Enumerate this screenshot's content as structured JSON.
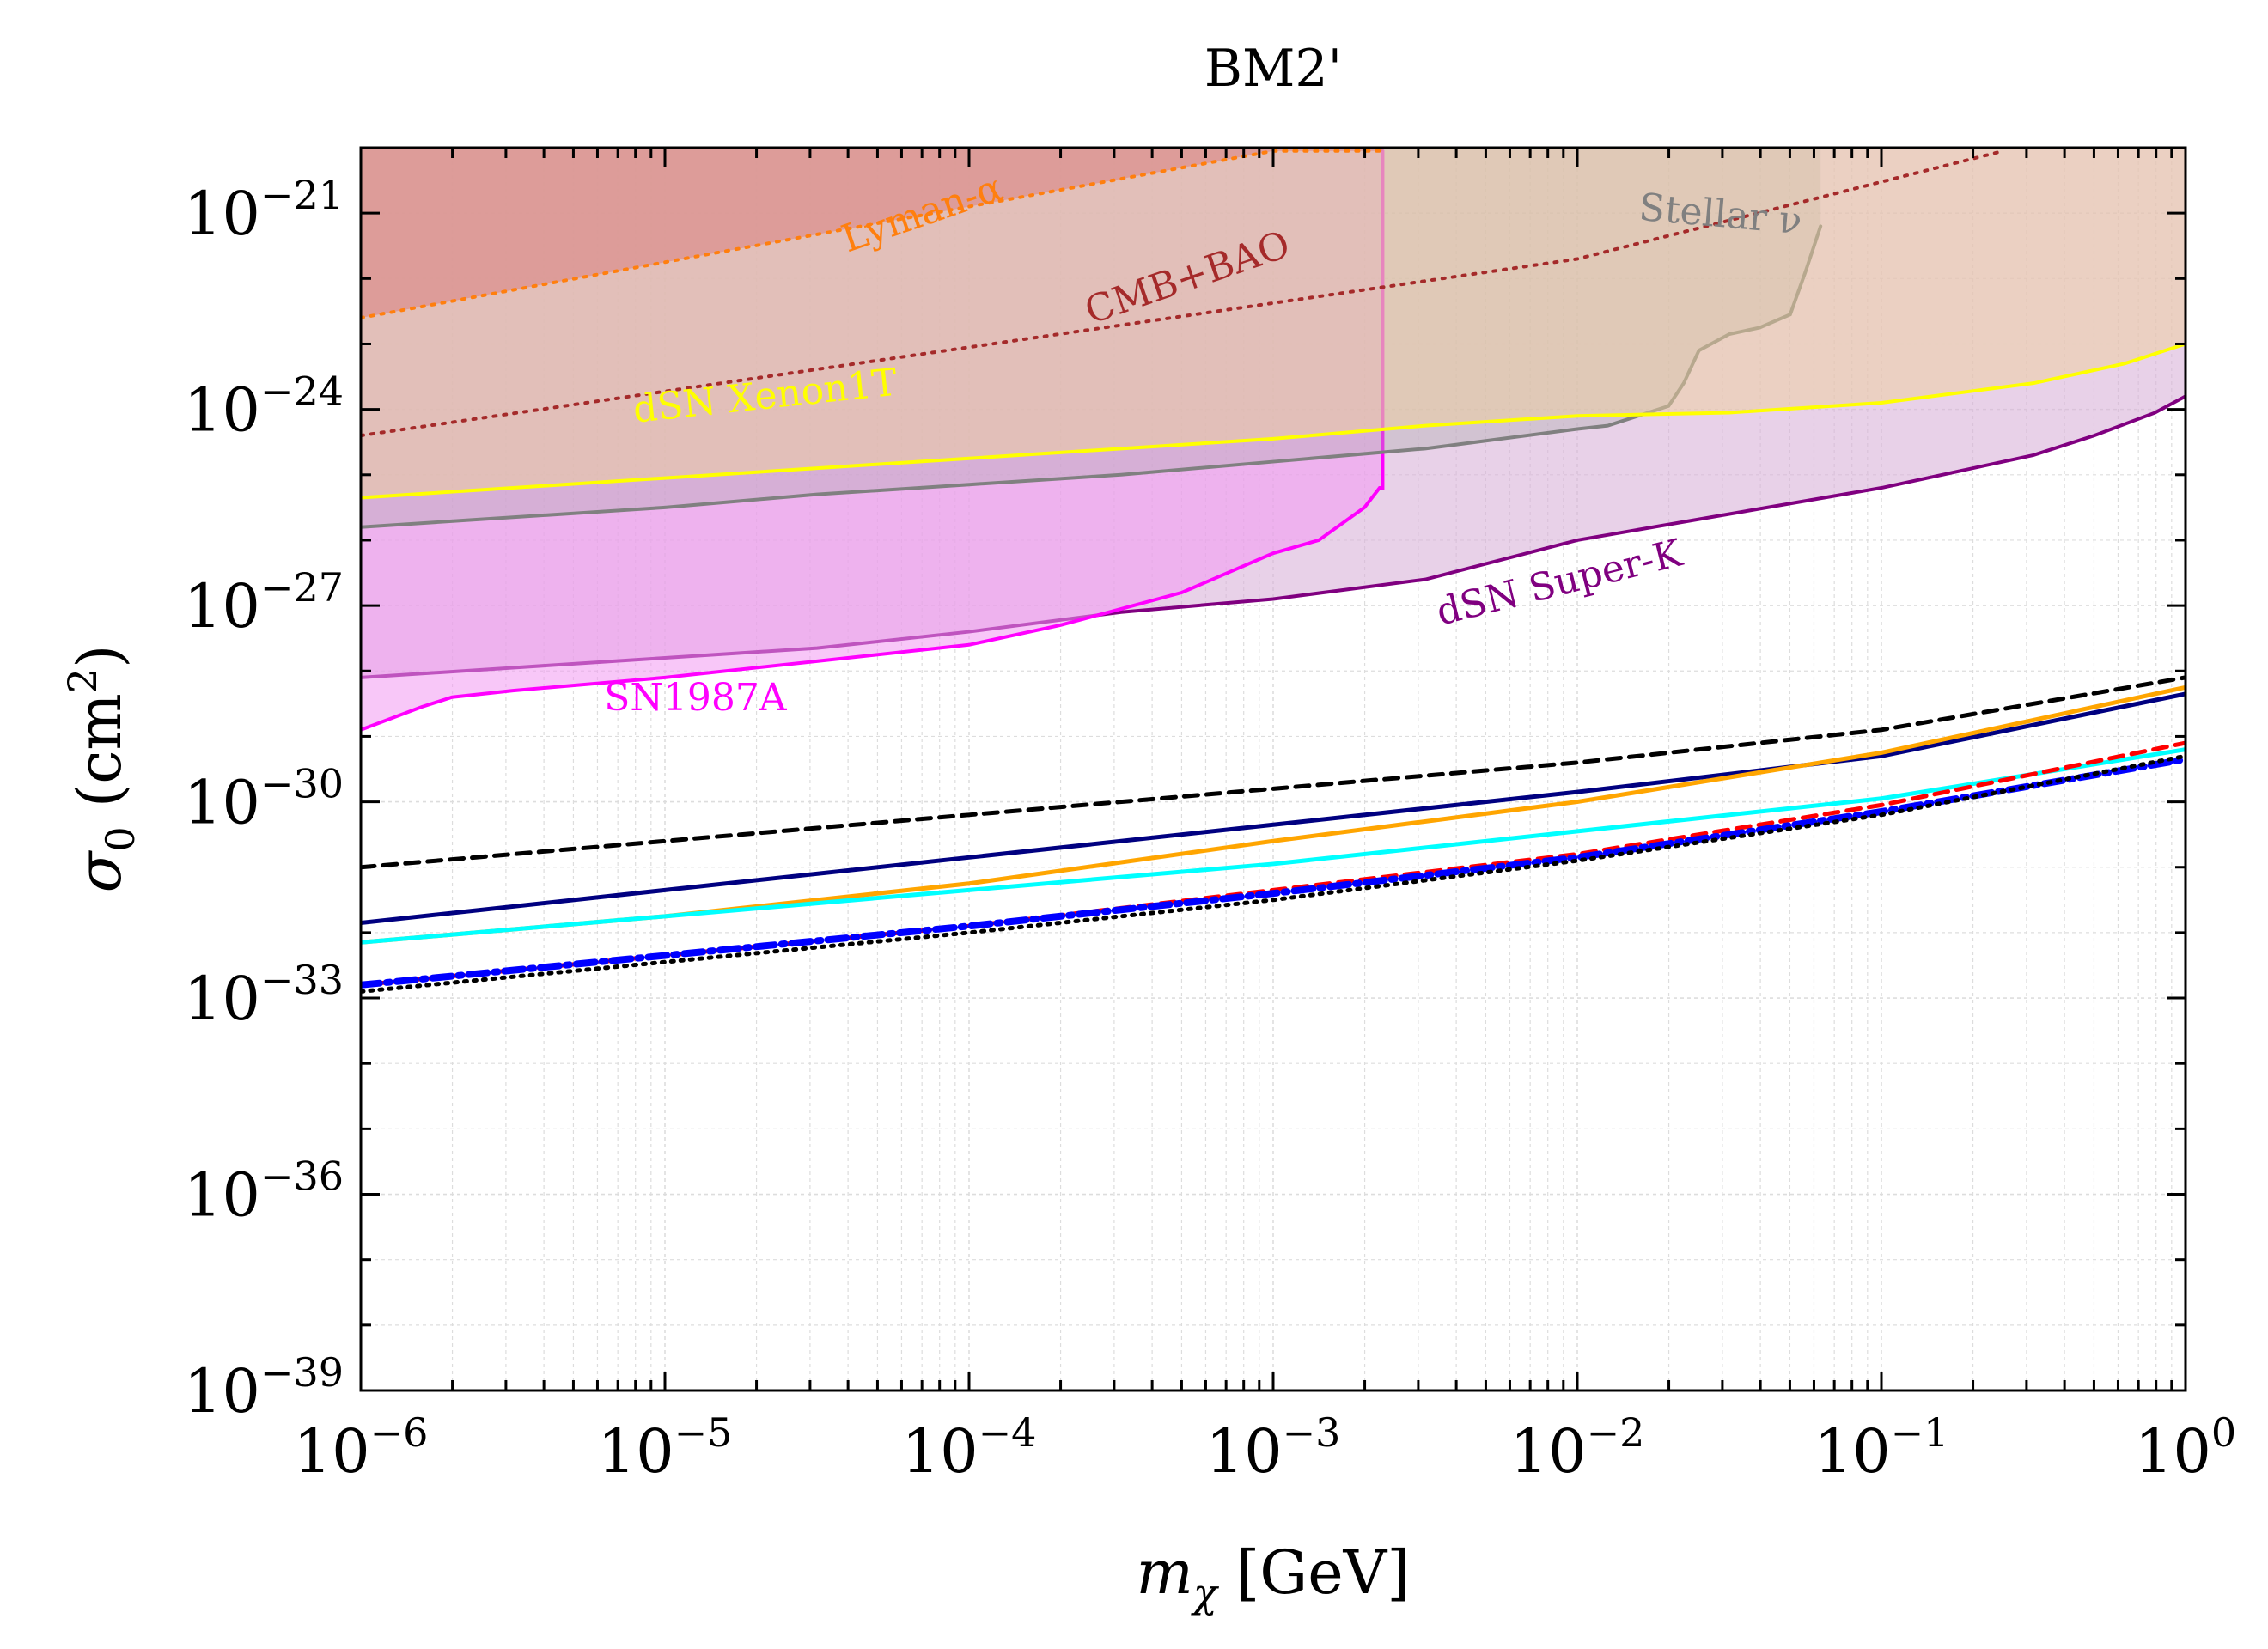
{
  "chart_data": {
    "type": "line",
    "title": "BM2'",
    "xlabel": {
      "var": "m",
      "sub": "χ",
      "unit": " [GeV]"
    },
    "ylabel": {
      "var": "σ",
      "sub": "0",
      "unit_open": " (cm",
      "unit_sup": "2",
      "unit_close": ")"
    },
    "x_scale": "log",
    "y_scale": "log",
    "xlim_log10": [
      -6,
      0
    ],
    "ylim_log10": [
      -39,
      -20
    ],
    "x_ticks": [
      {
        "base": "10",
        "exp": "−6",
        "log10": -6
      },
      {
        "base": "10",
        "exp": "−5",
        "log10": -5
      },
      {
        "base": "10",
        "exp": "−4",
        "log10": -4
      },
      {
        "base": "10",
        "exp": "−3",
        "log10": -3
      },
      {
        "base": "10",
        "exp": "−2",
        "log10": -2
      },
      {
        "base": "10",
        "exp": "−1",
        "log10": -1
      },
      {
        "base": "10",
        "exp": "0",
        "log10": 0
      }
    ],
    "y_ticks": [
      {
        "base": "10",
        "exp": "−21",
        "log10": -21
      },
      {
        "base": "10",
        "exp": "−24",
        "log10": -24
      },
      {
        "base": "10",
        "exp": "−27",
        "log10": -27
      },
      {
        "base": "10",
        "exp": "−30",
        "log10": -30
      },
      {
        "base": "10",
        "exp": "−33",
        "log10": -33
      },
      {
        "base": "10",
        "exp": "−36",
        "log10": -36
      },
      {
        "base": "10",
        "exp": "−39",
        "log10": -39
      }
    ],
    "grid": true,
    "exclusion_regions": [
      {
        "name": "dSN Super-K",
        "label": "dSN Super-K",
        "line_color": "#800080",
        "fill_color": "#d9b3d9",
        "fill_opacity": 0.6,
        "label_at_log10": [
          -2.45,
          -27.3
        ],
        "label_angle": -14,
        "x_log10": [
          -6,
          -5.5,
          -5,
          -4.5,
          -4,
          -3.5,
          -3,
          -2.5,
          -2,
          -1.5,
          -1,
          -0.5,
          -0.3,
          -0.1,
          0
        ],
        "y_log10": [
          -28.1,
          -27.95,
          -27.8,
          -27.65,
          -27.4,
          -27.1,
          -26.9,
          -26.6,
          -26.0,
          -25.6,
          -25.2,
          -24.7,
          -24.4,
          -24.05,
          -23.8
        ]
      },
      {
        "name": "SN1987A",
        "label": "SN1987A",
        "line_color": "#ff00ff",
        "fill_color": "#f299f2",
        "fill_opacity": 0.55,
        "label_at_log10": [
          -5.2,
          -28.6
        ],
        "label_angle": 0,
        "x_log10": [
          -6,
          -5.8,
          -5.7,
          -5.5,
          -5,
          -4.5,
          -4,
          -3.7,
          -3.5,
          -3.3,
          -3.0,
          -2.85,
          -2.7,
          -2.65,
          -2.64,
          -2.64
        ],
        "y_log10": [
          -28.9,
          -28.55,
          -28.4,
          -28.3,
          -28.1,
          -27.85,
          -27.6,
          -27.3,
          -27.05,
          -26.8,
          -26.2,
          -26.0,
          -25.5,
          -25.2,
          -25.2,
          -20.05
        ]
      },
      {
        "name": "Stellar nu",
        "label": "Stellar ν",
        "line_color": "#808080",
        "fill_color": "#aaaaaa",
        "fill_opacity": 0.35,
        "label_at_log10": [
          -1.8,
          -21.1
        ],
        "label_angle": 5,
        "x_log10": [
          -6,
          -5.5,
          -5,
          -4.5,
          -4,
          -3.5,
          -3,
          -2.5,
          -2,
          -1.9,
          -1.8,
          -1.7,
          -1.65,
          -1.6,
          -1.5,
          -1.4,
          -1.3,
          -1.25,
          -1.2
        ],
        "y_log10": [
          -25.8,
          -25.65,
          -25.5,
          -25.3,
          -25.15,
          -25.0,
          -24.8,
          -24.6,
          -24.3,
          -24.25,
          -24.1,
          -23.95,
          -23.6,
          -23.1,
          -22.85,
          -22.75,
          -22.55,
          -21.9,
          -21.2
        ]
      },
      {
        "name": "dSN Xenon1T",
        "label": "dSN Xenon1T",
        "line_color": "#ffff00",
        "fill_color": "#eecf9c",
        "fill_opacity": 0.5,
        "label_at_log10": [
          -5.1,
          -24.2
        ],
        "label_angle": -6,
        "x_log10": [
          -6,
          -5,
          -4,
          -3,
          -2.5,
          -2,
          -1.5,
          -1,
          -0.5,
          -0.2,
          0
        ],
        "y_log10": [
          -25.35,
          -25.05,
          -24.75,
          -24.45,
          -24.25,
          -24.1,
          -24.05,
          -23.9,
          -23.6,
          -23.3,
          -23.0
        ]
      },
      {
        "name": "Lyman-alpha",
        "label": "Lyman-α",
        "line_color": "#ff7f0e",
        "fill_color": "#d98080",
        "fill_opacity": 0.55,
        "label_at_log10": [
          -4.4,
          -21.6
        ],
        "label_angle": -19,
        "x_log10": [
          -6,
          -3.0,
          -2.64
        ],
        "y_log10": [
          -22.6,
          -20.05,
          -20.05
        ]
      },
      {
        "name": "CMB+BAO",
        "label": "CMB+BAO",
        "line_color": "#a52a2a",
        "fill_color": "#d98080",
        "fill_opacity": 0.0,
        "label_at_log10": [
          -3.6,
          -22.7
        ],
        "label_angle": -19,
        "x_log10": [
          -6,
          -2.0,
          -0.6
        ],
        "y_log10": [
          -24.4,
          -21.7,
          -20.05
        ]
      }
    ],
    "series": [
      {
        "name": "black-dashed",
        "color": "#000000",
        "style": "dashed",
        "x_log10": [
          -6,
          -5,
          -4,
          -3,
          -2,
          -1,
          0
        ],
        "y_log10": [
          -31.0,
          -30.6,
          -30.2,
          -29.8,
          -29.4,
          -28.9,
          -28.1
        ]
      },
      {
        "name": "navy-solid",
        "color": "#000080",
        "style": "solid",
        "x_log10": [
          -6,
          -5,
          -4,
          -3,
          -2,
          -1,
          0
        ],
        "y_log10": [
          -31.85,
          -31.35,
          -30.85,
          -30.35,
          -29.85,
          -29.3,
          -28.35
        ]
      },
      {
        "name": "orange-solid",
        "color": "#ffa500",
        "style": "solid",
        "x_log10": [
          -6,
          -5,
          -4,
          -3,
          -2,
          -1,
          0
        ],
        "y_log10": [
          -32.15,
          -31.75,
          -31.25,
          -30.6,
          -30.0,
          -29.25,
          -28.25
        ]
      },
      {
        "name": "cyan-solid",
        "color": "#00ffff",
        "style": "solid",
        "x_log10": [
          -6,
          -5,
          -4,
          -3,
          -2,
          -1,
          0
        ],
        "y_log10": [
          -32.15,
          -31.75,
          -31.35,
          -30.95,
          -30.45,
          -29.95,
          -29.2
        ]
      },
      {
        "name": "red-dashed",
        "color": "#ff0000",
        "style": "dashed",
        "x_log10": [
          -6,
          -5,
          -4,
          -3,
          -2,
          -1,
          0
        ],
        "y_log10": [
          -32.8,
          -32.35,
          -31.9,
          -31.35,
          -30.8,
          -30.05,
          -29.1
        ]
      },
      {
        "name": "blue-dashdot",
        "color": "#0000ff",
        "style": "dashdot",
        "x_log10": [
          -6,
          -5,
          -4,
          -3,
          -2,
          -1,
          0
        ],
        "y_log10": [
          -32.8,
          -32.35,
          -31.9,
          -31.4,
          -30.85,
          -30.15,
          -29.35
        ]
      },
      {
        "name": "black-dotted",
        "color": "#000000",
        "style": "dotted",
        "x_log10": [
          -6,
          -5,
          -4,
          -3,
          -2,
          -1,
          0
        ],
        "y_log10": [
          -32.9,
          -32.45,
          -32.0,
          -31.5,
          -30.9,
          -30.2,
          -29.3
        ]
      }
    ]
  }
}
